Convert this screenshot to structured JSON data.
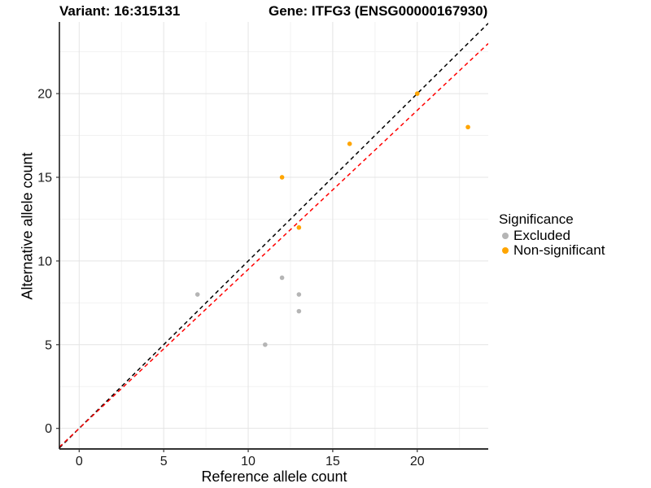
{
  "chart_data": {
    "type": "scatter",
    "title_left": "Variant: 16:315131",
    "title_right": "Gene: ITFG3 (ENSG00000167930)",
    "xlabel": "Reference allele count",
    "ylabel": "Alternative allele count",
    "xlim": [
      -1.17,
      24.2
    ],
    "ylim": [
      -1.23,
      24.28
    ],
    "x_ticks": [
      0,
      5,
      10,
      15,
      20
    ],
    "y_ticks": [
      0,
      5,
      10,
      15,
      20
    ],
    "x_minor_ticks": [
      2.5,
      7.5,
      12.5,
      17.5,
      22.5
    ],
    "y_minor_ticks": [
      2.5,
      7.5,
      12.5,
      17.5,
      22.5
    ],
    "grid": true,
    "series": [
      {
        "name": "Excluded",
        "color": "#B5B5B5",
        "points": [
          [
            7,
            8
          ],
          [
            11,
            5
          ],
          [
            12,
            9
          ],
          [
            13,
            7
          ],
          [
            13,
            8
          ]
        ]
      },
      {
        "name": "Non-significant",
        "color": "#FFA500",
        "points": [
          [
            12,
            15
          ],
          [
            13,
            12
          ],
          [
            16,
            17
          ],
          [
            20,
            20
          ],
          [
            23,
            18
          ]
        ]
      }
    ],
    "lines": [
      {
        "name": "identity-line",
        "slope": 1,
        "intercept": 0,
        "color": "#000000",
        "dash": "5 4"
      },
      {
        "name": "allelic-ratio-line",
        "slope": 0.95,
        "intercept": 0,
        "color": "#FF0000",
        "dash": "5 4"
      }
    ],
    "legend": {
      "title": "Significance",
      "position": "right",
      "entries": [
        {
          "label": "Excluded",
          "color": "#B5B5B5"
        },
        {
          "label": "Non-significant",
          "color": "#FFA500"
        }
      ]
    },
    "colors": {
      "major_grid": "#E4E4E4",
      "minor_grid": "#F2F2F2",
      "axis_line": "#333333",
      "tick_text": "#1A1A1A",
      "background": "#FFFFFF"
    }
  }
}
